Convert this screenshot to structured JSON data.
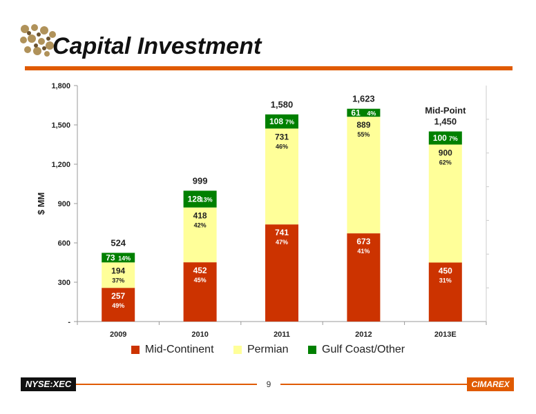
{
  "slide": {
    "title": "Capital Investment",
    "ticker": "NYSE:XEC",
    "page_number": "9",
    "brand": "CIMAREX"
  },
  "chart_data": {
    "type": "bar",
    "stacked": true,
    "ylabel": "$ MM",
    "ylim": [
      0,
      1800
    ],
    "yticks": [
      0,
      300,
      600,
      900,
      1200,
      1500,
      1800
    ],
    "ytick_labels": [
      "-",
      "300",
      "600",
      "900",
      "1,200",
      "1,500",
      "1,800"
    ],
    "categories": [
      "2009",
      "2010",
      "2011",
      "2012",
      "2013E"
    ],
    "totals": [
      "524",
      "999",
      "1,580",
      "1,623",
      "1,450"
    ],
    "total_prefix": [
      "",
      "",
      "",
      "",
      "Mid-Point"
    ],
    "legend_position": "bottom",
    "series": [
      {
        "name": "Mid-Continent",
        "color": "#cc3300",
        "values": [
          257,
          452,
          741,
          673,
          450
        ],
        "labels": [
          "257",
          "452",
          "741",
          "673",
          "450"
        ],
        "pcts": [
          "49%",
          "45%",
          "47%",
          "41%",
          "31%"
        ]
      },
      {
        "name": "Permian",
        "color": "#ffff99",
        "values": [
          194,
          418,
          731,
          889,
          900
        ],
        "labels": [
          "194",
          "418",
          "731",
          "889",
          "900"
        ],
        "pcts": [
          "37%",
          "42%",
          "46%",
          "55%",
          "62%"
        ]
      },
      {
        "name": "Gulf Coast/Other",
        "color": "#008000",
        "values": [
          73,
          128,
          108,
          61,
          100
        ],
        "labels": [
          "73",
          "128",
          "108",
          "61",
          "100"
        ],
        "pcts": [
          "14%",
          "13%",
          "7%",
          "4%",
          "7%"
        ]
      }
    ]
  }
}
